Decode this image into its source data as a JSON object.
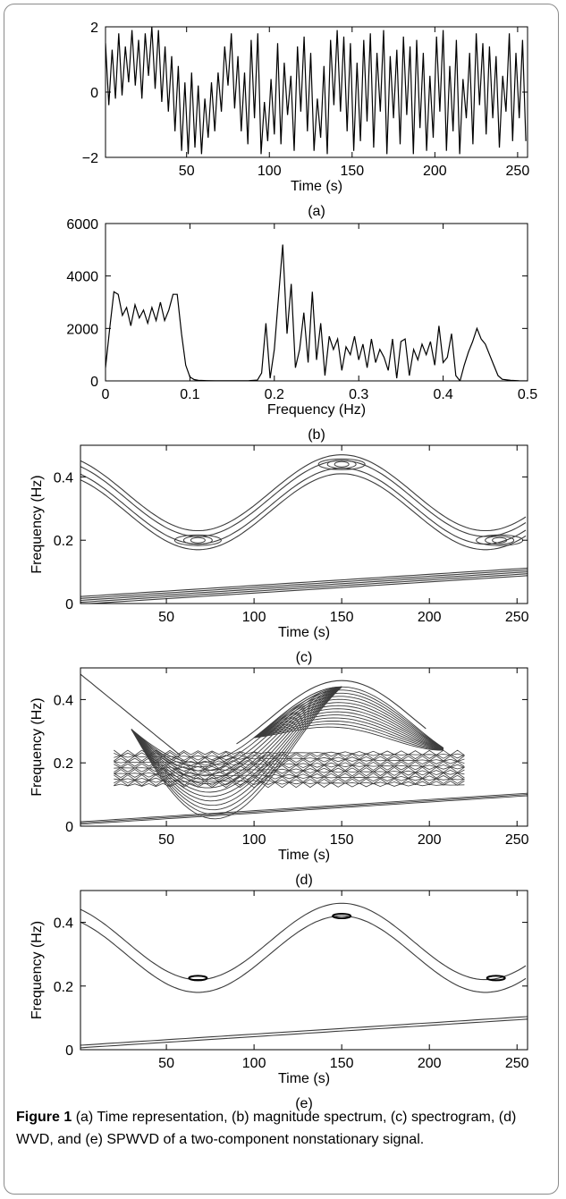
{
  "caption": {
    "label": "Figure 1",
    "text": "(a) Time representation, (b) magnitude spectrum, (c) spectrogram, (d) WVD, and (e) SPWVD of a two-component nonstationary signal."
  },
  "colors": {
    "axis": "#000000",
    "line": "#000000",
    "contour": "#3c3c3c",
    "frame": "#8a8a8a"
  },
  "chart_data": [
    {
      "panel": "(a)",
      "type": "line",
      "xlabel": "Time (s)",
      "ylabel": "",
      "xlim": [
        1,
        256
      ],
      "ylim": [
        -2,
        2
      ],
      "xticks": [
        50,
        100,
        150,
        200,
        250
      ],
      "yticks": [
        -2,
        0,
        2
      ],
      "series": [
        {
          "x": [
            1,
            3,
            5,
            7,
            9,
            11,
            13,
            15,
            17,
            19,
            21,
            23,
            25,
            27,
            29,
            31,
            33,
            35,
            37,
            39,
            41,
            43,
            45,
            47,
            49,
            51,
            53,
            55,
            57,
            59,
            61,
            63,
            65,
            67,
            69,
            71,
            73,
            75,
            77,
            79,
            81,
            83,
            85,
            87,
            89,
            91,
            93,
            95,
            97,
            99,
            101,
            103,
            105,
            107,
            109,
            111,
            113,
            115,
            117,
            119,
            121,
            123,
            125,
            127,
            129,
            131,
            133,
            135,
            137,
            139,
            141,
            143,
            145,
            147,
            149,
            151,
            153,
            155,
            157,
            159,
            161,
            163,
            165,
            167,
            169,
            171,
            173,
            175,
            177,
            179,
            181,
            183,
            185,
            187,
            189,
            191,
            193,
            195,
            197,
            199,
            201,
            203,
            205,
            207,
            209,
            211,
            213,
            215,
            217,
            219,
            221,
            223,
            225,
            227,
            229,
            231,
            233,
            235,
            237,
            239,
            241,
            243,
            245,
            247,
            249,
            251,
            253,
            255
          ],
          "y": [
            1.5,
            -0.4,
            1.3,
            -0.2,
            1.8,
            -0.1,
            1.4,
            0.3,
            1.9,
            0.2,
            1.6,
            -0.2,
            1.8,
            0.5,
            2,
            0.1,
            1.9,
            -0.3,
            1.4,
            -0.6,
            1.1,
            -1.2,
            0.8,
            -1.8,
            0.3,
            -1.9,
            0.6,
            -1.7,
            0.2,
            -1.9,
            -0.2,
            -1.4,
            0.3,
            -1.2,
            0.6,
            -0.6,
            1.4,
            0.2,
            1.8,
            -0.5,
            1.1,
            -1.2,
            0.6,
            -1.6,
            1.6,
            -0.8,
            1.8,
            -1.9,
            -0.3,
            -1.5,
            0.4,
            -1.3,
            1.5,
            -1.6,
            0.9,
            -0.7,
            0.5,
            -1.8,
            1.4,
            -0.6,
            1.7,
            -1.2,
            1.2,
            -1.8,
            -0.2,
            -1.4,
            0.8,
            -1.9,
            1.6,
            -0.4,
            1.9,
            -0.6,
            1.7,
            -1.2,
            1.5,
            -1.8,
            0.9,
            -1.5,
            1.6,
            -0.9,
            1.8,
            -1.7,
            1.2,
            -0.6,
            1.9,
            -1.9,
            1.1,
            -0.8,
            1.3,
            -1.6,
            1.7,
            -0.7,
            1.4,
            -1.9,
            1.6,
            -1.1,
            1.2,
            -1.8,
            0.5,
            -1.4,
            1.7,
            -0.6,
            1.9,
            -1.8,
            0.8,
            -1.2,
            1.6,
            -1.9,
            0.4,
            -0.8,
            1.2,
            -1.6,
            1.8,
            -0.4,
            1.5,
            -1.3,
            1.4,
            -0.8,
            1.1,
            -1.7,
            0.5,
            -0.6,
            1.8,
            -1.5,
            1.2,
            -0.8,
            1.6,
            -1.5
          ]
        }
      ]
    },
    {
      "panel": "(b)",
      "type": "line",
      "xlabel": "Frequency (Hz)",
      "ylabel": "",
      "xlim": [
        0,
        0.5
      ],
      "ylim": [
        0,
        6000
      ],
      "xticks": [
        0,
        0.1,
        0.2,
        0.3,
        0.4,
        0.5
      ],
      "yticks": [
        0,
        2000,
        4000,
        6000
      ],
      "series": [
        {
          "x": [
            0,
            0.005,
            0.01,
            0.015,
            0.02,
            0.025,
            0.03,
            0.035,
            0.04,
            0.045,
            0.05,
            0.055,
            0.06,
            0.065,
            0.07,
            0.075,
            0.08,
            0.085,
            0.09,
            0.095,
            0.1,
            0.105,
            0.11,
            0.12,
            0.13,
            0.14,
            0.15,
            0.16,
            0.17,
            0.18,
            0.185,
            0.19,
            0.195,
            0.2,
            0.205,
            0.21,
            0.215,
            0.22,
            0.225,
            0.23,
            0.235,
            0.24,
            0.245,
            0.25,
            0.255,
            0.26,
            0.265,
            0.27,
            0.275,
            0.28,
            0.285,
            0.29,
            0.295,
            0.3,
            0.305,
            0.31,
            0.315,
            0.32,
            0.325,
            0.33,
            0.335,
            0.34,
            0.345,
            0.35,
            0.355,
            0.36,
            0.365,
            0.37,
            0.375,
            0.38,
            0.385,
            0.39,
            0.395,
            0.4,
            0.405,
            0.41,
            0.415,
            0.42,
            0.425,
            0.43,
            0.435,
            0.44,
            0.445,
            0.45,
            0.455,
            0.46,
            0.465,
            0.47,
            0.48,
            0.49,
            0.5
          ],
          "y": [
            500,
            2000,
            3400,
            3300,
            2500,
            2800,
            2100,
            2900,
            2400,
            2700,
            2200,
            2800,
            2300,
            3000,
            2300,
            2700,
            3300,
            3300,
            1800,
            600,
            150,
            50,
            20,
            10,
            5,
            5,
            5,
            5,
            10,
            30,
            300,
            2200,
            100,
            1200,
            3200,
            5200,
            1800,
            3700,
            500,
            1200,
            2600,
            700,
            3400,
            800,
            2200,
            200,
            1700,
            1200,
            1600,
            400,
            1300,
            1000,
            1700,
            800,
            1400,
            500,
            1600,
            700,
            1200,
            900,
            400,
            1600,
            100,
            1500,
            1600,
            200,
            1200,
            800,
            1400,
            1000,
            1500,
            600,
            2100,
            700,
            900,
            1800,
            200,
            0,
            600,
            1100,
            1500,
            2000,
            1600,
            1400,
            1000,
            600,
            200,
            60,
            20,
            5,
            0
          ]
        }
      ]
    },
    {
      "panel": "(c)",
      "type": "contour",
      "xlabel": "Time (s)",
      "ylabel": "Frequency (Hz)",
      "xlim": [
        1,
        256
      ],
      "ylim": [
        0,
        0.5
      ],
      "xticks": [
        50,
        100,
        150,
        200,
        250
      ],
      "yticks": [
        0,
        0.2,
        0.4
      ],
      "components": [
        {
          "kind": "linear chirp",
          "f_start": 0.01,
          "f_end": 0.1
        },
        {
          "kind": "sinusoidal FM",
          "f_center": 0.32,
          "f_amplitude": 0.12,
          "min_at_s": 68,
          "max_at_s": 150
        }
      ]
    },
    {
      "panel": "(d)",
      "type": "contour",
      "xlabel": "Time (s)",
      "ylabel": "Frequency (Hz)",
      "xlim": [
        1,
        256
      ],
      "ylim": [
        0,
        0.5
      ],
      "xticks": [
        50,
        100,
        150,
        200,
        250
      ],
      "yticks": [
        0,
        0.2,
        0.4
      ]
    },
    {
      "panel": "(e)",
      "type": "contour",
      "xlabel": "Time (s)",
      "ylabel": "Frequency (Hz)",
      "xlim": [
        1,
        256
      ],
      "ylim": [
        0,
        0.5
      ],
      "xticks": [
        50,
        100,
        150,
        200,
        250
      ],
      "yticks": [
        0,
        0.2,
        0.4
      ]
    }
  ]
}
